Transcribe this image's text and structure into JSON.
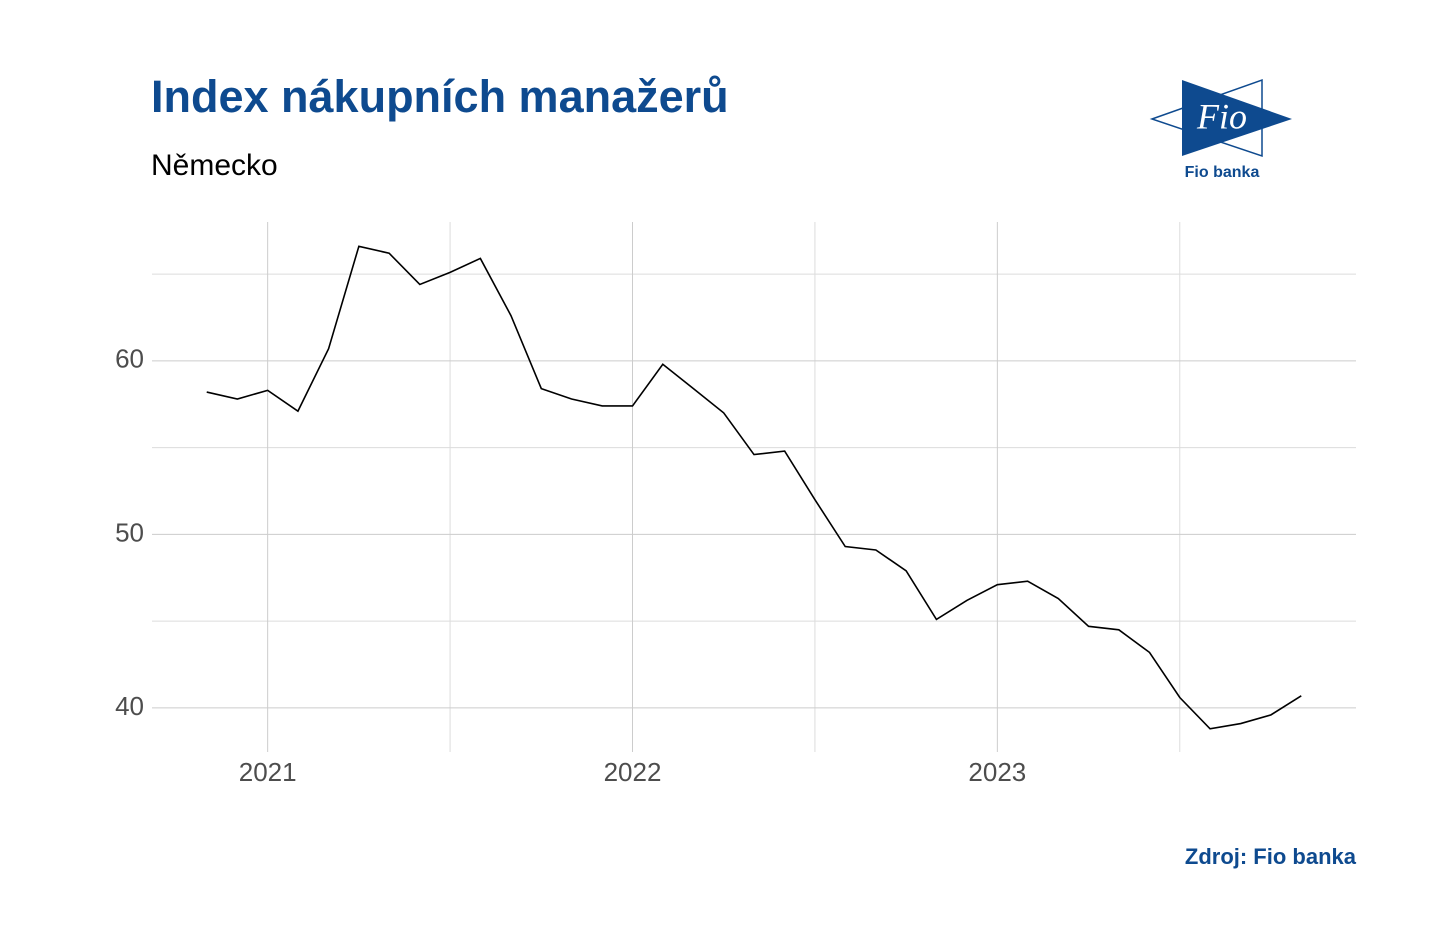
{
  "chart_data": {
    "type": "line",
    "title": "Index nákupních manažerů",
    "subtitle": "Německo",
    "source": "Zdroj: Fio banka",
    "logo_text": "Fio",
    "logo_caption": "Fio banka",
    "x": [
      2020.833,
      2020.917,
      2021,
      2021.083,
      2021.167,
      2021.25,
      2021.333,
      2021.417,
      2021.5,
      2021.583,
      2021.667,
      2021.75,
      2021.833,
      2021.917,
      2022,
      2022.083,
      2022.167,
      2022.25,
      2022.333,
      2022.417,
      2022.5,
      2022.583,
      2022.667,
      2022.75,
      2022.833,
      2022.917,
      2023,
      2023.083,
      2023.167,
      2023.25,
      2023.333,
      2023.417,
      2023.5,
      2023.583,
      2023.667,
      2023.75,
      2023.833
    ],
    "values": [
      58.2,
      57.8,
      58.3,
      57.1,
      60.7,
      66.6,
      66.2,
      64.4,
      65.1,
      65.9,
      62.6,
      58.4,
      57.8,
      57.4,
      57.4,
      59.8,
      58.4,
      57.0,
      54.6,
      54.8,
      52.0,
      49.3,
      49.1,
      47.9,
      45.1,
      46.2,
      47.1,
      47.3,
      46.3,
      44.7,
      44.5,
      43.2,
      40.6,
      38.8,
      39.1,
      39.6,
      40.7
    ],
    "color": "#000000",
    "xlim": [
      2020.683,
      2023.983
    ],
    "ylim": [
      37.46,
      68.0
    ],
    "xticks": [
      2021,
      2022,
      2023
    ],
    "xminor": [
      2021.5,
      2022.5,
      2023.5
    ],
    "yticks": [
      40,
      50,
      60
    ],
    "yminor": [
      45,
      55,
      65
    ],
    "grid": true
  }
}
